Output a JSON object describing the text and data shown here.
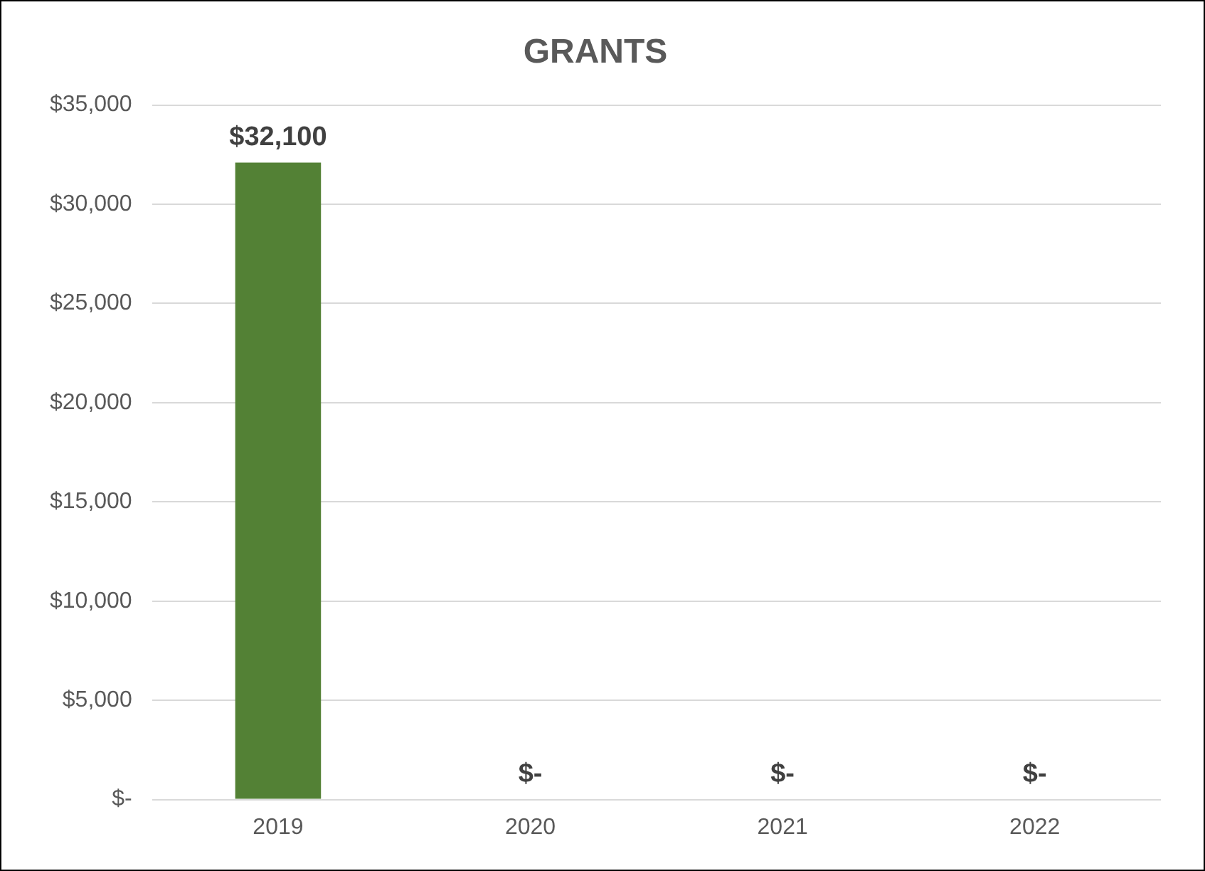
{
  "chart_data": {
    "type": "bar",
    "title": "GRANTS",
    "categories": [
      "2019",
      "2020",
      "2021",
      "2022"
    ],
    "values": [
      32100,
      0,
      0,
      0
    ],
    "value_labels": [
      "$32,100",
      "$-",
      "$-",
      "$-"
    ],
    "color": "#538135",
    "ylim": [
      0,
      35000
    ],
    "yticks": [
      {
        "value": 0,
        "label": "$-"
      },
      {
        "value": 5000,
        "label": "$5,000"
      },
      {
        "value": 10000,
        "label": "$10,000"
      },
      {
        "value": 15000,
        "label": "$15,000"
      },
      {
        "value": 20000,
        "label": "$20,000"
      },
      {
        "value": 25000,
        "label": "$25,000"
      },
      {
        "value": 30000,
        "label": "$30,000"
      },
      {
        "value": 35000,
        "label": "$35,000"
      }
    ],
    "grid": "y",
    "legend": false
  }
}
